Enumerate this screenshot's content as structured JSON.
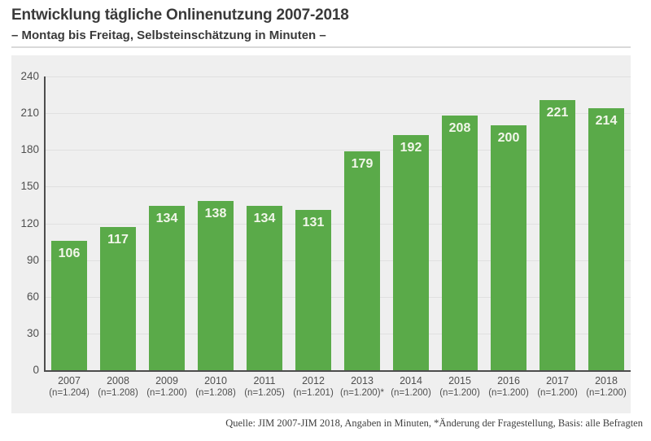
{
  "header": {
    "title": "Entwicklung tägliche Onlinenutzung 2007-2018",
    "subtitle": "– Montag bis Freitag, Selbsteinschätzung in Minuten –"
  },
  "footer": {
    "source": "Quelle: JIM 2007-JIM 2018, Angaben in Minuten, *Änderung der Fragestellung, Basis: alle Befragten"
  },
  "colors": {
    "bar": "#5aaa49",
    "panel_background": "#efefef",
    "gridline": "#e0e0e0",
    "axis": "#4d4d4d",
    "bar_value_label": "#f2f6ea",
    "heading_text": "#3a3a3a",
    "tick_text": "#4f4f4f"
  },
  "chart_data": {
    "type": "bar",
    "title": "Entwicklung tägliche Onlinenutzung 2007-2018",
    "subtitle": "– Montag bis Freitag, Selbsteinschätzung in Minuten –",
    "categories": [
      "2007",
      "2008",
      "2009",
      "2010",
      "2011",
      "2012",
      "2013",
      "2014",
      "2015",
      "2016",
      "2017",
      "2018"
    ],
    "category_sublabels": [
      "(n=1.204)",
      "(n=1.208)",
      "(n=1.200)",
      "(n=1.208)",
      "(n=1.205)",
      "(n=1.201)",
      "(n=1.200)*",
      "(n=1.200)",
      "(n=1.200)",
      "(n=1.200)",
      "(n=1.200)",
      "(n=1.200)"
    ],
    "values": [
      106,
      117,
      134,
      138,
      134,
      131,
      179,
      192,
      208,
      200,
      221,
      214
    ],
    "xlabel": "",
    "ylabel": "",
    "ylim": [
      0,
      240
    ],
    "yticks": [
      0,
      30,
      60,
      90,
      120,
      150,
      180,
      210,
      240
    ],
    "grid": true,
    "legend": false,
    "source": "Quelle: JIM 2007-JIM 2018, Angaben in Minuten, *Änderung der Fragestellung, Basis: alle Befragten"
  }
}
